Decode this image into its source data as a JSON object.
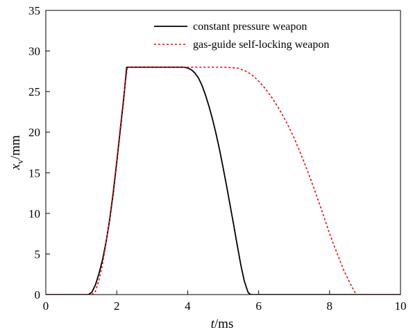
{
  "chart_data": {
    "type": "line",
    "title": "",
    "xlabel": {
      "var": "t",
      "unit": "/ms"
    },
    "ylabel": {
      "var": "x",
      "sub": "v",
      "unit": "/mm"
    },
    "xlim": [
      0,
      10
    ],
    "ylim": [
      0,
      35
    ],
    "xticks": [
      0,
      2,
      4,
      6,
      8,
      10
    ],
    "yticks": [
      0,
      5,
      10,
      15,
      20,
      25,
      30,
      35
    ],
    "grid": false,
    "legend": "top-right",
    "series": [
      {
        "name": "constant pressure weapon",
        "color": "#000000",
        "dash": "solid",
        "x": [
          0,
          1.2,
          1.3,
          1.4,
          1.5,
          1.6,
          1.7,
          1.8,
          1.9,
          2.0,
          2.1,
          2.2,
          2.28,
          2.5,
          3.0,
          3.5,
          3.9,
          4.0,
          4.1,
          4.2,
          4.3,
          4.4,
          4.5,
          4.6,
          4.7,
          4.8,
          4.9,
          5.0,
          5.1,
          5.2,
          5.3,
          5.4,
          5.5,
          5.6,
          5.7,
          5.75,
          5.8,
          10
        ],
        "y": [
          0,
          0,
          0.3,
          1.2,
          2.6,
          4.3,
          6.5,
          9.2,
          12.5,
          16.3,
          20.3,
          24.3,
          28.0,
          28.0,
          28.0,
          28.0,
          28.0,
          27.9,
          27.7,
          27.3,
          26.7,
          25.8,
          24.6,
          23.2,
          21.6,
          19.8,
          17.8,
          15.6,
          13.3,
          10.9,
          8.5,
          6.0,
          3.6,
          1.6,
          0.3,
          0.05,
          0,
          0
        ]
      },
      {
        "name": "gas-guide self-locking weapon",
        "color": "#ff0000",
        "dash": "dotted",
        "x": [
          0,
          1.3,
          1.4,
          1.5,
          1.6,
          1.7,
          1.8,
          1.9,
          2.0,
          2.1,
          2.2,
          2.3,
          2.5,
          3.0,
          4.0,
          5.0,
          5.4,
          5.6,
          5.8,
          6.0,
          6.2,
          6.4,
          6.6,
          6.8,
          7.0,
          7.2,
          7.4,
          7.6,
          7.8,
          8.0,
          8.2,
          8.4,
          8.6,
          8.75,
          10
        ],
        "y": [
          0,
          0,
          0.4,
          1.8,
          3.8,
          6.4,
          9.4,
          12.8,
          16.6,
          20.6,
          24.6,
          28.0,
          28.0,
          28.0,
          28.0,
          28.0,
          27.9,
          27.6,
          27.1,
          26.3,
          25.3,
          24.1,
          22.7,
          21.1,
          19.3,
          17.2,
          15.0,
          12.6,
          10.1,
          7.5,
          5.2,
          3.0,
          1.2,
          0,
          0
        ]
      }
    ]
  }
}
